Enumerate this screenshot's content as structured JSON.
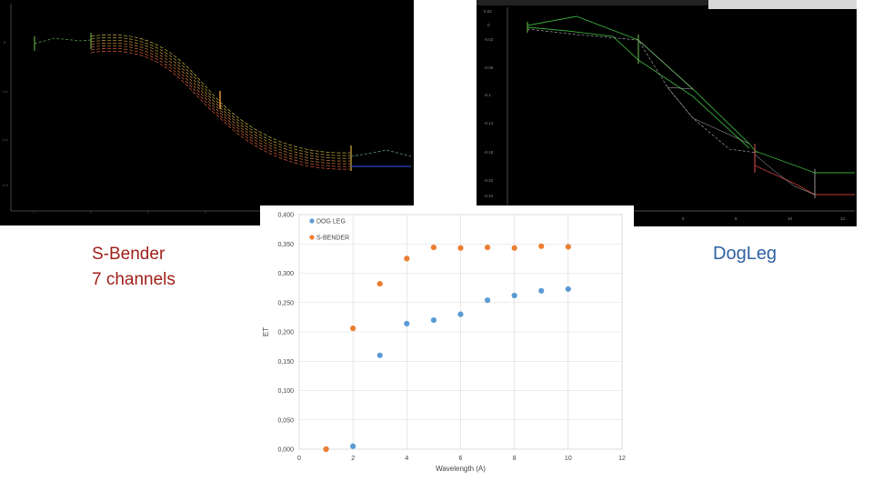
{
  "captions": {
    "sbender_line1": "S-Bender",
    "sbender_line2": "7 channels",
    "dogleg": "DogLeg"
  },
  "colors": {
    "sbender_caption": "#a0201a",
    "dogleg_caption": "#2f62a4",
    "dogleg_series": "#5b9bd5",
    "sbender_series": "#ed7d31"
  },
  "chart_data": {
    "type": "scatter",
    "xlabel": "Wavelength (A)",
    "ylabel": "ET",
    "xlim": [
      0,
      12
    ],
    "ylim": [
      0.0,
      0.4
    ],
    "x_ticks": [
      "0",
      "2",
      "4",
      "6",
      "8",
      "10",
      "12"
    ],
    "y_ticks": [
      "0,000",
      "0,050",
      "0,100",
      "0,150",
      "0,200",
      "0,250",
      "0,300",
      "0,350",
      "0,400"
    ],
    "grid": true,
    "legend_position": "top-left",
    "series": [
      {
        "name": "DOG LEG",
        "color": "#5b9bd5",
        "x": [
          1,
          2,
          3,
          4,
          5,
          6,
          7,
          8,
          9,
          10
        ],
        "y": [
          0.0,
          0.005,
          0.16,
          0.214,
          0.22,
          0.23,
          0.254,
          0.262,
          0.27,
          0.273
        ]
      },
      {
        "name": "S-BENDER",
        "color": "#ed7d31",
        "x": [
          1,
          2,
          3,
          4,
          5,
          6,
          7,
          8,
          9,
          10
        ],
        "y": [
          0.0,
          0.206,
          0.282,
          0.325,
          0.344,
          0.343,
          0.344,
          0.343,
          0.346,
          0.345
        ]
      }
    ]
  }
}
